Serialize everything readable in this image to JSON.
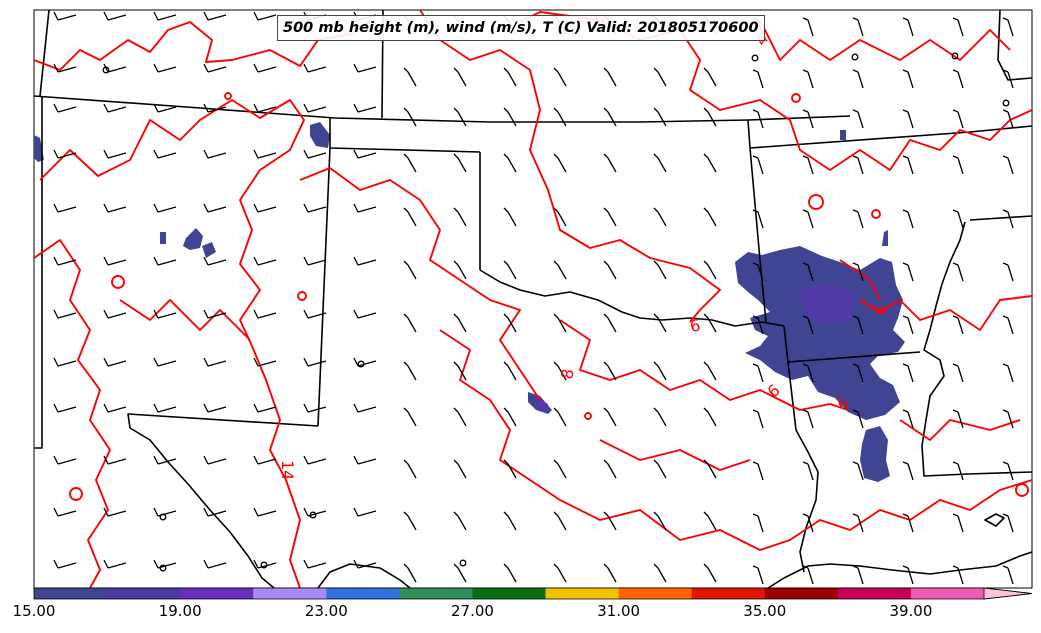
{
  "title": "500 mb height (m), wind (m/s), T (C) Valid: 201805170600",
  "colorbar": {
    "colors": [
      "#3f4593",
      "#4c3aa0",
      "#6a2cbf",
      "#a78cf3",
      "#2f6fe0",
      "#2e8f5c",
      "#0b6e12",
      "#f2c100",
      "#ff6400",
      "#e21600",
      "#9a0000",
      "#c8005a",
      "#f05ab4",
      "#ffc0dc"
    ],
    "tick_labels": [
      "15.00",
      "19.00",
      "23.00",
      "27.00",
      "31.00",
      "35.00",
      "39.00"
    ],
    "tick_values": [
      15,
      19,
      23,
      27,
      31,
      35,
      39
    ],
    "range": [
      15,
      42
    ],
    "extend": "max"
  },
  "contour_labels": [
    {
      "text": "6"
    },
    {
      "text": "6"
    },
    {
      "text": "6"
    },
    {
      "text": "6"
    },
    {
      "text": "8"
    },
    {
      "text": "14"
    },
    {
      "text": "4"
    }
  ],
  "styles": {
    "contour_color": "#ff0000",
    "border_color": "#000000",
    "barb_color": "#000000"
  }
}
